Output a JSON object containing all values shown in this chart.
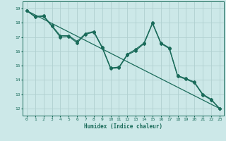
{
  "xlabel": "Humidex (Indice chaleur)",
  "ylabel": "",
  "xlim": [
    -0.5,
    23.5
  ],
  "ylim": [
    11.5,
    19.5
  ],
  "xticks": [
    0,
    1,
    2,
    3,
    4,
    5,
    6,
    7,
    8,
    9,
    10,
    11,
    12,
    13,
    14,
    15,
    16,
    17,
    18,
    19,
    20,
    21,
    22,
    23
  ],
  "yticks": [
    12,
    13,
    14,
    15,
    16,
    17,
    18,
    19
  ],
  "background_color": "#cce8e8",
  "grid_color": "#b0d0d0",
  "line_color": "#1a6b5a",
  "line1_y": [
    18.85,
    18.45,
    18.5,
    17.8,
    17.1,
    17.1,
    16.7,
    17.25,
    17.4,
    16.3,
    14.85,
    14.9,
    15.8,
    16.15,
    16.6,
    18.0,
    16.6,
    16.25,
    14.3,
    14.1,
    13.85,
    13.0,
    12.65,
    12.0
  ],
  "line2_y": [
    18.85,
    18.4,
    18.45,
    17.75,
    17.0,
    17.05,
    16.6,
    17.2,
    17.35,
    16.25,
    14.8,
    14.85,
    15.75,
    16.05,
    16.55,
    17.95,
    16.55,
    16.2,
    14.25,
    14.05,
    13.8,
    12.95,
    12.6,
    12.0
  ],
  "line3_y": [
    18.85,
    12.0
  ],
  "line3_x": [
    0,
    23
  ]
}
